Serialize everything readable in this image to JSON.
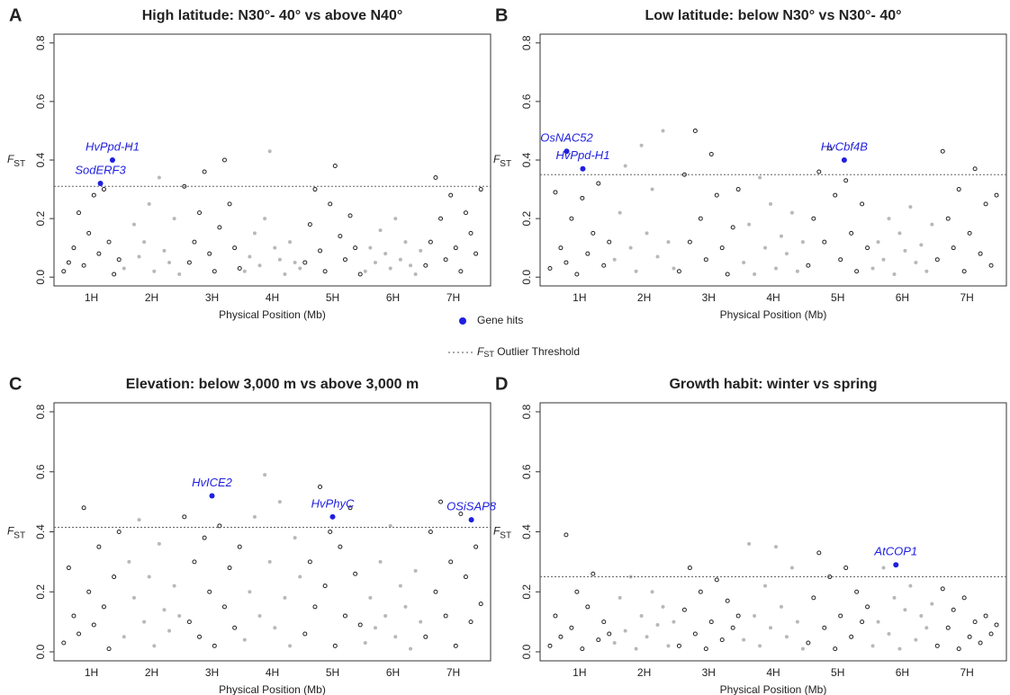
{
  "legend": {
    "gene_hits": "Gene hits",
    "hit_color": "#1f1fe0",
    "threshold": [
      "F",
      "ST",
      " Outlier Threshold"
    ]
  },
  "chart_data": [
    {
      "type": "scatter",
      "panel": "A",
      "title": "High latitude: N30°- 40° vs above N40°",
      "xlabel": "Physical Position (Mb)",
      "ylabel": [
        "F",
        "ST"
      ],
      "ylim": [
        -0.03,
        0.83
      ],
      "yticks": [
        {
          "value": 0,
          "label": "0.0"
        },
        0.2,
        0.4,
        0.6,
        0.8
      ],
      "threshold": 0.31,
      "series": [
        {
          "name": "1H",
          "color": "#222222",
          "marker": "open",
          "values": [
            0.02,
            0.05,
            0.1,
            0.22,
            0.04,
            0.15,
            0.28,
            0.08,
            0.3,
            0.12,
            0.01,
            0.06
          ]
        },
        {
          "name": "2H",
          "color": "#b8b8b8",
          "marker": "filled",
          "values": [
            0.03,
            0.45,
            0.18,
            0.07,
            0.12,
            0.25,
            0.02,
            0.34,
            0.09,
            0.05,
            0.2,
            0.01
          ]
        },
        {
          "name": "3H",
          "color": "#222222",
          "marker": "open",
          "values": [
            0.31,
            0.05,
            0.12,
            0.22,
            0.36,
            0.08,
            0.02,
            0.17,
            0.4,
            0.25,
            0.1,
            0.03
          ]
        },
        {
          "name": "4H",
          "color": "#b8b8b8",
          "marker": "filled",
          "values": [
            0.02,
            0.07,
            0.15,
            0.04,
            0.2,
            0.43,
            0.1,
            0.06,
            0.01,
            0.12,
            0.05,
            0.03
          ]
        },
        {
          "name": "5H",
          "color": "#222222",
          "marker": "open",
          "values": [
            0.05,
            0.18,
            0.3,
            0.09,
            0.02,
            0.25,
            0.38,
            0.14,
            0.06,
            0.21,
            0.1,
            0.01
          ]
        },
        {
          "name": "6H",
          "color": "#b8b8b8",
          "marker": "filled",
          "values": [
            0.02,
            0.1,
            0.05,
            0.16,
            0.08,
            0.03,
            0.2,
            0.06,
            0.12,
            0.04,
            0.01,
            0.09
          ]
        },
        {
          "name": "7H",
          "color": "#222222",
          "marker": "open",
          "values": [
            0.04,
            0.12,
            0.34,
            0.2,
            0.06,
            0.28,
            0.1,
            0.02,
            0.22,
            0.15,
            0.08,
            0.3
          ]
        }
      ],
      "hits": [
        {
          "name": "HvPpd-H1",
          "chromosome": "1H",
          "value": 0.4
        },
        {
          "name": "SodERF3",
          "chromosome": "1H",
          "value": 0.32
        }
      ]
    },
    {
      "type": "scatter",
      "panel": "B",
      "title": "Low latitude: below N30° vs N30°- 40°",
      "xlabel": "Physical Position (Mb)",
      "ylabel": [
        "F",
        "ST"
      ],
      "ylim": [
        -0.03,
        0.83
      ],
      "yticks": [
        {
          "value": 0,
          "label": "0.0"
        },
        0.2,
        0.4,
        0.6,
        0.8
      ],
      "threshold": 0.35,
      "series": [
        {
          "name": "1H",
          "color": "#222222",
          "marker": "open",
          "values": [
            0.03,
            0.29,
            0.1,
            0.05,
            0.2,
            0.01,
            0.27,
            0.08,
            0.15,
            0.32,
            0.04,
            0.12
          ]
        },
        {
          "name": "2H",
          "color": "#b8b8b8",
          "marker": "filled",
          "values": [
            0.06,
            0.22,
            0.38,
            0.1,
            0.02,
            0.45,
            0.15,
            0.3,
            0.07,
            0.5,
            0.12,
            0.03
          ]
        },
        {
          "name": "3H",
          "color": "#222222",
          "marker": "open",
          "values": [
            0.02,
            0.35,
            0.12,
            0.5,
            0.2,
            0.06,
            0.42,
            0.28,
            0.1,
            0.01,
            0.17,
            0.3
          ]
        },
        {
          "name": "4H",
          "color": "#b8b8b8",
          "marker": "filled",
          "values": [
            0.05,
            0.18,
            0.01,
            0.34,
            0.1,
            0.25,
            0.03,
            0.14,
            0.08,
            0.22,
            0.02,
            0.12
          ]
        },
        {
          "name": "5H",
          "color": "#222222",
          "marker": "open",
          "values": [
            0.04,
            0.2,
            0.36,
            0.12,
            0.44,
            0.28,
            0.06,
            0.33,
            0.15,
            0.02,
            0.25,
            0.1
          ]
        },
        {
          "name": "6H",
          "color": "#b8b8b8",
          "marker": "filled",
          "values": [
            0.03,
            0.12,
            0.06,
            0.2,
            0.01,
            0.15,
            0.09,
            0.24,
            0.05,
            0.11,
            0.02,
            0.18
          ]
        },
        {
          "name": "7H",
          "color": "#222222",
          "marker": "open",
          "values": [
            0.06,
            0.43,
            0.2,
            0.1,
            0.3,
            0.02,
            0.15,
            0.37,
            0.08,
            0.25,
            0.04,
            0.28
          ]
        }
      ],
      "hits": [
        {
          "name": "OsNAC52",
          "chromosome": "1H",
          "value": 0.43
        },
        {
          "name": "HvPpd-H1",
          "chromosome": "1H",
          "value": 0.37
        },
        {
          "name": "HvCbf4B",
          "chromosome": "5H",
          "value": 0.4
        }
      ]
    },
    {
      "type": "scatter",
      "panel": "C",
      "title": "Elevation: below 3,000 m vs above 3,000 m",
      "xlabel": "Physical Position (Mb)",
      "ylabel": [
        "F",
        "ST"
      ],
      "ylim": [
        -0.03,
        0.83
      ],
      "yticks": [
        {
          "value": 0,
          "label": "0.0"
        },
        0.2,
        0.4,
        0.6,
        0.8
      ],
      "threshold": 0.415,
      "series": [
        {
          "name": "1H",
          "color": "#222222",
          "marker": "open",
          "values": [
            0.03,
            0.28,
            0.12,
            0.06,
            0.48,
            0.2,
            0.09,
            0.35,
            0.15,
            0.01,
            0.25,
            0.4
          ]
        },
        {
          "name": "2H",
          "color": "#b8b8b8",
          "marker": "filled",
          "values": [
            0.05,
            0.3,
            0.18,
            0.44,
            0.1,
            0.25,
            0.02,
            0.36,
            0.14,
            0.07,
            0.22,
            0.12
          ]
        },
        {
          "name": "3H",
          "color": "#222222",
          "marker": "open",
          "values": [
            0.45,
            0.1,
            0.3,
            0.05,
            0.38,
            0.2,
            0.02,
            0.42,
            0.15,
            0.28,
            0.08,
            0.35
          ]
        },
        {
          "name": "4H",
          "color": "#b8b8b8",
          "marker": "filled",
          "values": [
            0.04,
            0.2,
            0.45,
            0.12,
            0.59,
            0.3,
            0.08,
            0.5,
            0.18,
            0.02,
            0.38,
            0.25
          ]
        },
        {
          "name": "5H",
          "color": "#222222",
          "marker": "open",
          "values": [
            0.06,
            0.3,
            0.15,
            0.55,
            0.22,
            0.4,
            0.02,
            0.35,
            0.12,
            0.48,
            0.26,
            0.09
          ]
        },
        {
          "name": "6H",
          "color": "#b8b8b8",
          "marker": "filled",
          "values": [
            0.03,
            0.18,
            0.08,
            0.3,
            0.12,
            0.42,
            0.05,
            0.22,
            0.15,
            0.01,
            0.27,
            0.1
          ]
        },
        {
          "name": "7H",
          "color": "#222222",
          "marker": "open",
          "values": [
            0.05,
            0.4,
            0.2,
            0.5,
            0.12,
            0.3,
            0.02,
            0.46,
            0.25,
            0.1,
            0.35,
            0.16
          ]
        }
      ],
      "hits": [
        {
          "name": "HvICE2",
          "chromosome": "3H",
          "value": 0.52
        },
        {
          "name": "HvPhyC",
          "chromosome": "5H",
          "value": 0.45
        },
        {
          "name": "OSiSAP8",
          "chromosome": "7H",
          "value": 0.44
        }
      ]
    },
    {
      "type": "scatter",
      "panel": "D",
      "title": "Growth habit: winter vs spring",
      "xlabel": "Physical Position (Mb)",
      "ylabel": [
        "F",
        "ST"
      ],
      "ylim": [
        -0.03,
        0.83
      ],
      "yticks": [
        {
          "value": 0,
          "label": "0.0"
        },
        0.2,
        0.4,
        0.6,
        0.8
      ],
      "threshold": 0.25,
      "series": [
        {
          "name": "1H",
          "color": "#222222",
          "marker": "open",
          "values": [
            0.02,
            0.12,
            0.05,
            0.39,
            0.08,
            0.2,
            0.01,
            0.15,
            0.26,
            0.04,
            0.1,
            0.06
          ]
        },
        {
          "name": "2H",
          "color": "#b8b8b8",
          "marker": "filled",
          "values": [
            0.03,
            0.18,
            0.07,
            0.25,
            0.01,
            0.12,
            0.05,
            0.2,
            0.09,
            0.15,
            0.02,
            0.1
          ]
        },
        {
          "name": "3H",
          "color": "#222222",
          "marker": "open",
          "values": [
            0.02,
            0.14,
            0.28,
            0.06,
            0.2,
            0.01,
            0.1,
            0.24,
            0.04,
            0.17,
            0.08,
            0.12
          ]
        },
        {
          "name": "4H",
          "color": "#b8b8b8",
          "marker": "filled",
          "values": [
            0.04,
            0.36,
            0.12,
            0.02,
            0.22,
            0.08,
            0.35,
            0.15,
            0.05,
            0.28,
            0.1,
            0.01
          ]
        },
        {
          "name": "5H",
          "color": "#222222",
          "marker": "open",
          "values": [
            0.03,
            0.18,
            0.33,
            0.08,
            0.25,
            0.01,
            0.12,
            0.28,
            0.05,
            0.2,
            0.1,
            0.15
          ]
        },
        {
          "name": "6H",
          "color": "#b8b8b8",
          "marker": "filled",
          "values": [
            0.02,
            0.1,
            0.28,
            0.06,
            0.18,
            0.01,
            0.14,
            0.22,
            0.04,
            0.12,
            0.08,
            0.16
          ]
        },
        {
          "name": "7H",
          "color": "#222222",
          "marker": "open",
          "values": [
            0.02,
            0.21,
            0.08,
            0.14,
            0.01,
            0.18,
            0.05,
            0.1,
            0.03,
            0.12,
            0.06,
            0.09
          ]
        }
      ],
      "hits": [
        {
          "name": "AtCOP1",
          "chromosome": "6H",
          "value": 0.29
        }
      ]
    }
  ]
}
